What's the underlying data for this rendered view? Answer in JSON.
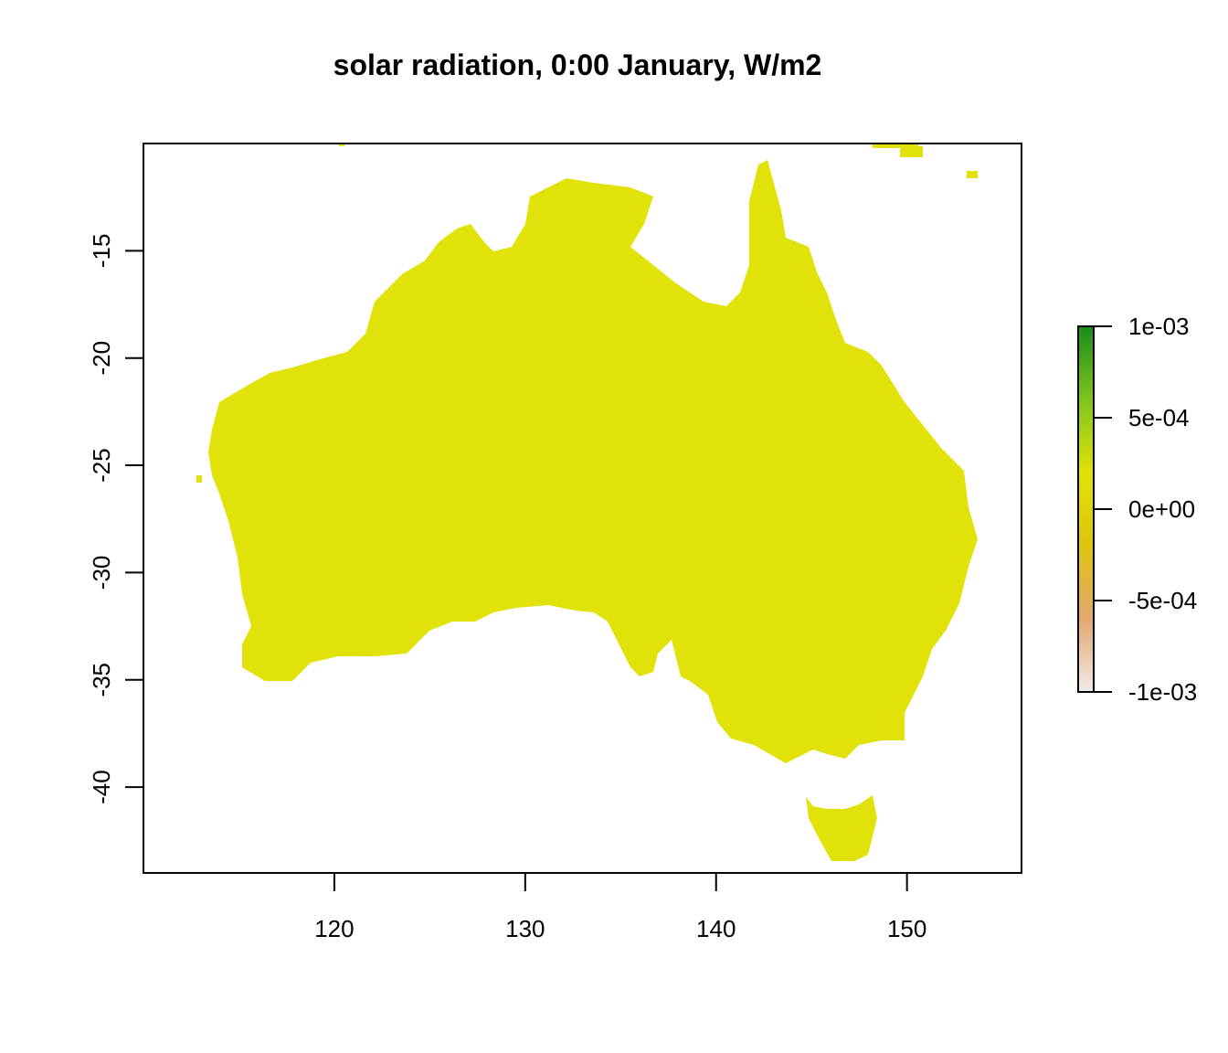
{
  "chart_data": {
    "type": "raster",
    "title": "solar radiation, 0:00 January, W/m2",
    "xlim": [
      110,
      156
    ],
    "ylim": [
      -44,
      -10
    ],
    "xticks": [
      120,
      130,
      140,
      150
    ],
    "yticks": [
      -15,
      -20,
      -25,
      -30,
      -35,
      -40
    ],
    "land_color": "#e0e20a",
    "colorbar": {
      "lim": [
        -0.001,
        0.001
      ],
      "ticks": [
        {
          "value": 0.001,
          "label": "1e-03"
        },
        {
          "value": 0.0005,
          "label": "5e-04"
        },
        {
          "value": 0,
          "label": "0e+00"
        },
        {
          "value": -0.0005,
          "label": "-5e-04"
        },
        {
          "value": -0.001,
          "label": "-1e-03"
        }
      ],
      "colors": [
        "#f2eaea",
        "#e3a771",
        "#e0c30f",
        "#e0e20a",
        "#7fc41e",
        "#1a8c1a"
      ]
    }
  }
}
